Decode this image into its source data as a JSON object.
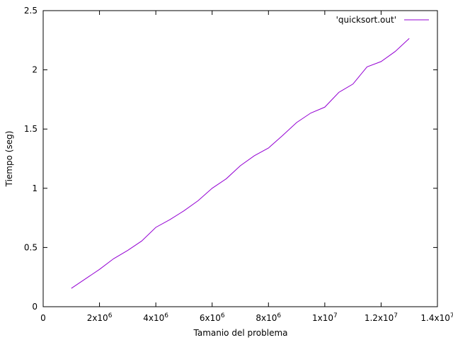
{
  "chart_data": {
    "type": "line",
    "title": "",
    "xlabel": "Tamanio del problema",
    "ylabel": "Tiempo (seg)",
    "xlim": [
      0,
      14000000
    ],
    "ylim": [
      0,
      2.5
    ],
    "x_ticks": [
      {
        "value": 0,
        "base": "0",
        "exp": ""
      },
      {
        "value": 2000000,
        "base": "2x10",
        "exp": "6"
      },
      {
        "value": 4000000,
        "base": "4x10",
        "exp": "6"
      },
      {
        "value": 6000000,
        "base": "6x10",
        "exp": "6"
      },
      {
        "value": 8000000,
        "base": "8x10",
        "exp": "6"
      },
      {
        "value": 10000000,
        "base": "1x10",
        "exp": "7"
      },
      {
        "value": 12000000,
        "base": "1.2x10",
        "exp": "7"
      },
      {
        "value": 14000000,
        "base": "1.4x10",
        "exp": "7"
      }
    ],
    "y_ticks": [
      {
        "value": 0,
        "label": "0"
      },
      {
        "value": 0.5,
        "label": "0.5"
      },
      {
        "value": 1,
        "label": "1"
      },
      {
        "value": 1.5,
        "label": "1.5"
      },
      {
        "value": 2,
        "label": "2"
      },
      {
        "value": 2.5,
        "label": "2.5"
      }
    ],
    "grid": false,
    "legend_position": "top-right",
    "series": [
      {
        "name": "'quicksort.out'",
        "color": "#9400d3",
        "x": [
          1000000,
          1500000,
          2000000,
          2500000,
          3000000,
          3500000,
          4000000,
          4500000,
          5000000,
          5500000,
          6000000,
          6500000,
          7000000,
          7500000,
          8000000,
          8500000,
          9000000,
          9500000,
          10000000,
          10500000,
          11000000,
          11500000,
          12000000,
          12500000,
          13000000
        ],
        "y": [
          0.155,
          0.235,
          0.315,
          0.405,
          0.475,
          0.555,
          0.67,
          0.735,
          0.81,
          0.895,
          1.0,
          1.08,
          1.19,
          1.275,
          1.34,
          1.445,
          1.555,
          1.635,
          1.685,
          1.81,
          1.88,
          2.025,
          2.07,
          2.155,
          2.265
        ]
      }
    ]
  }
}
